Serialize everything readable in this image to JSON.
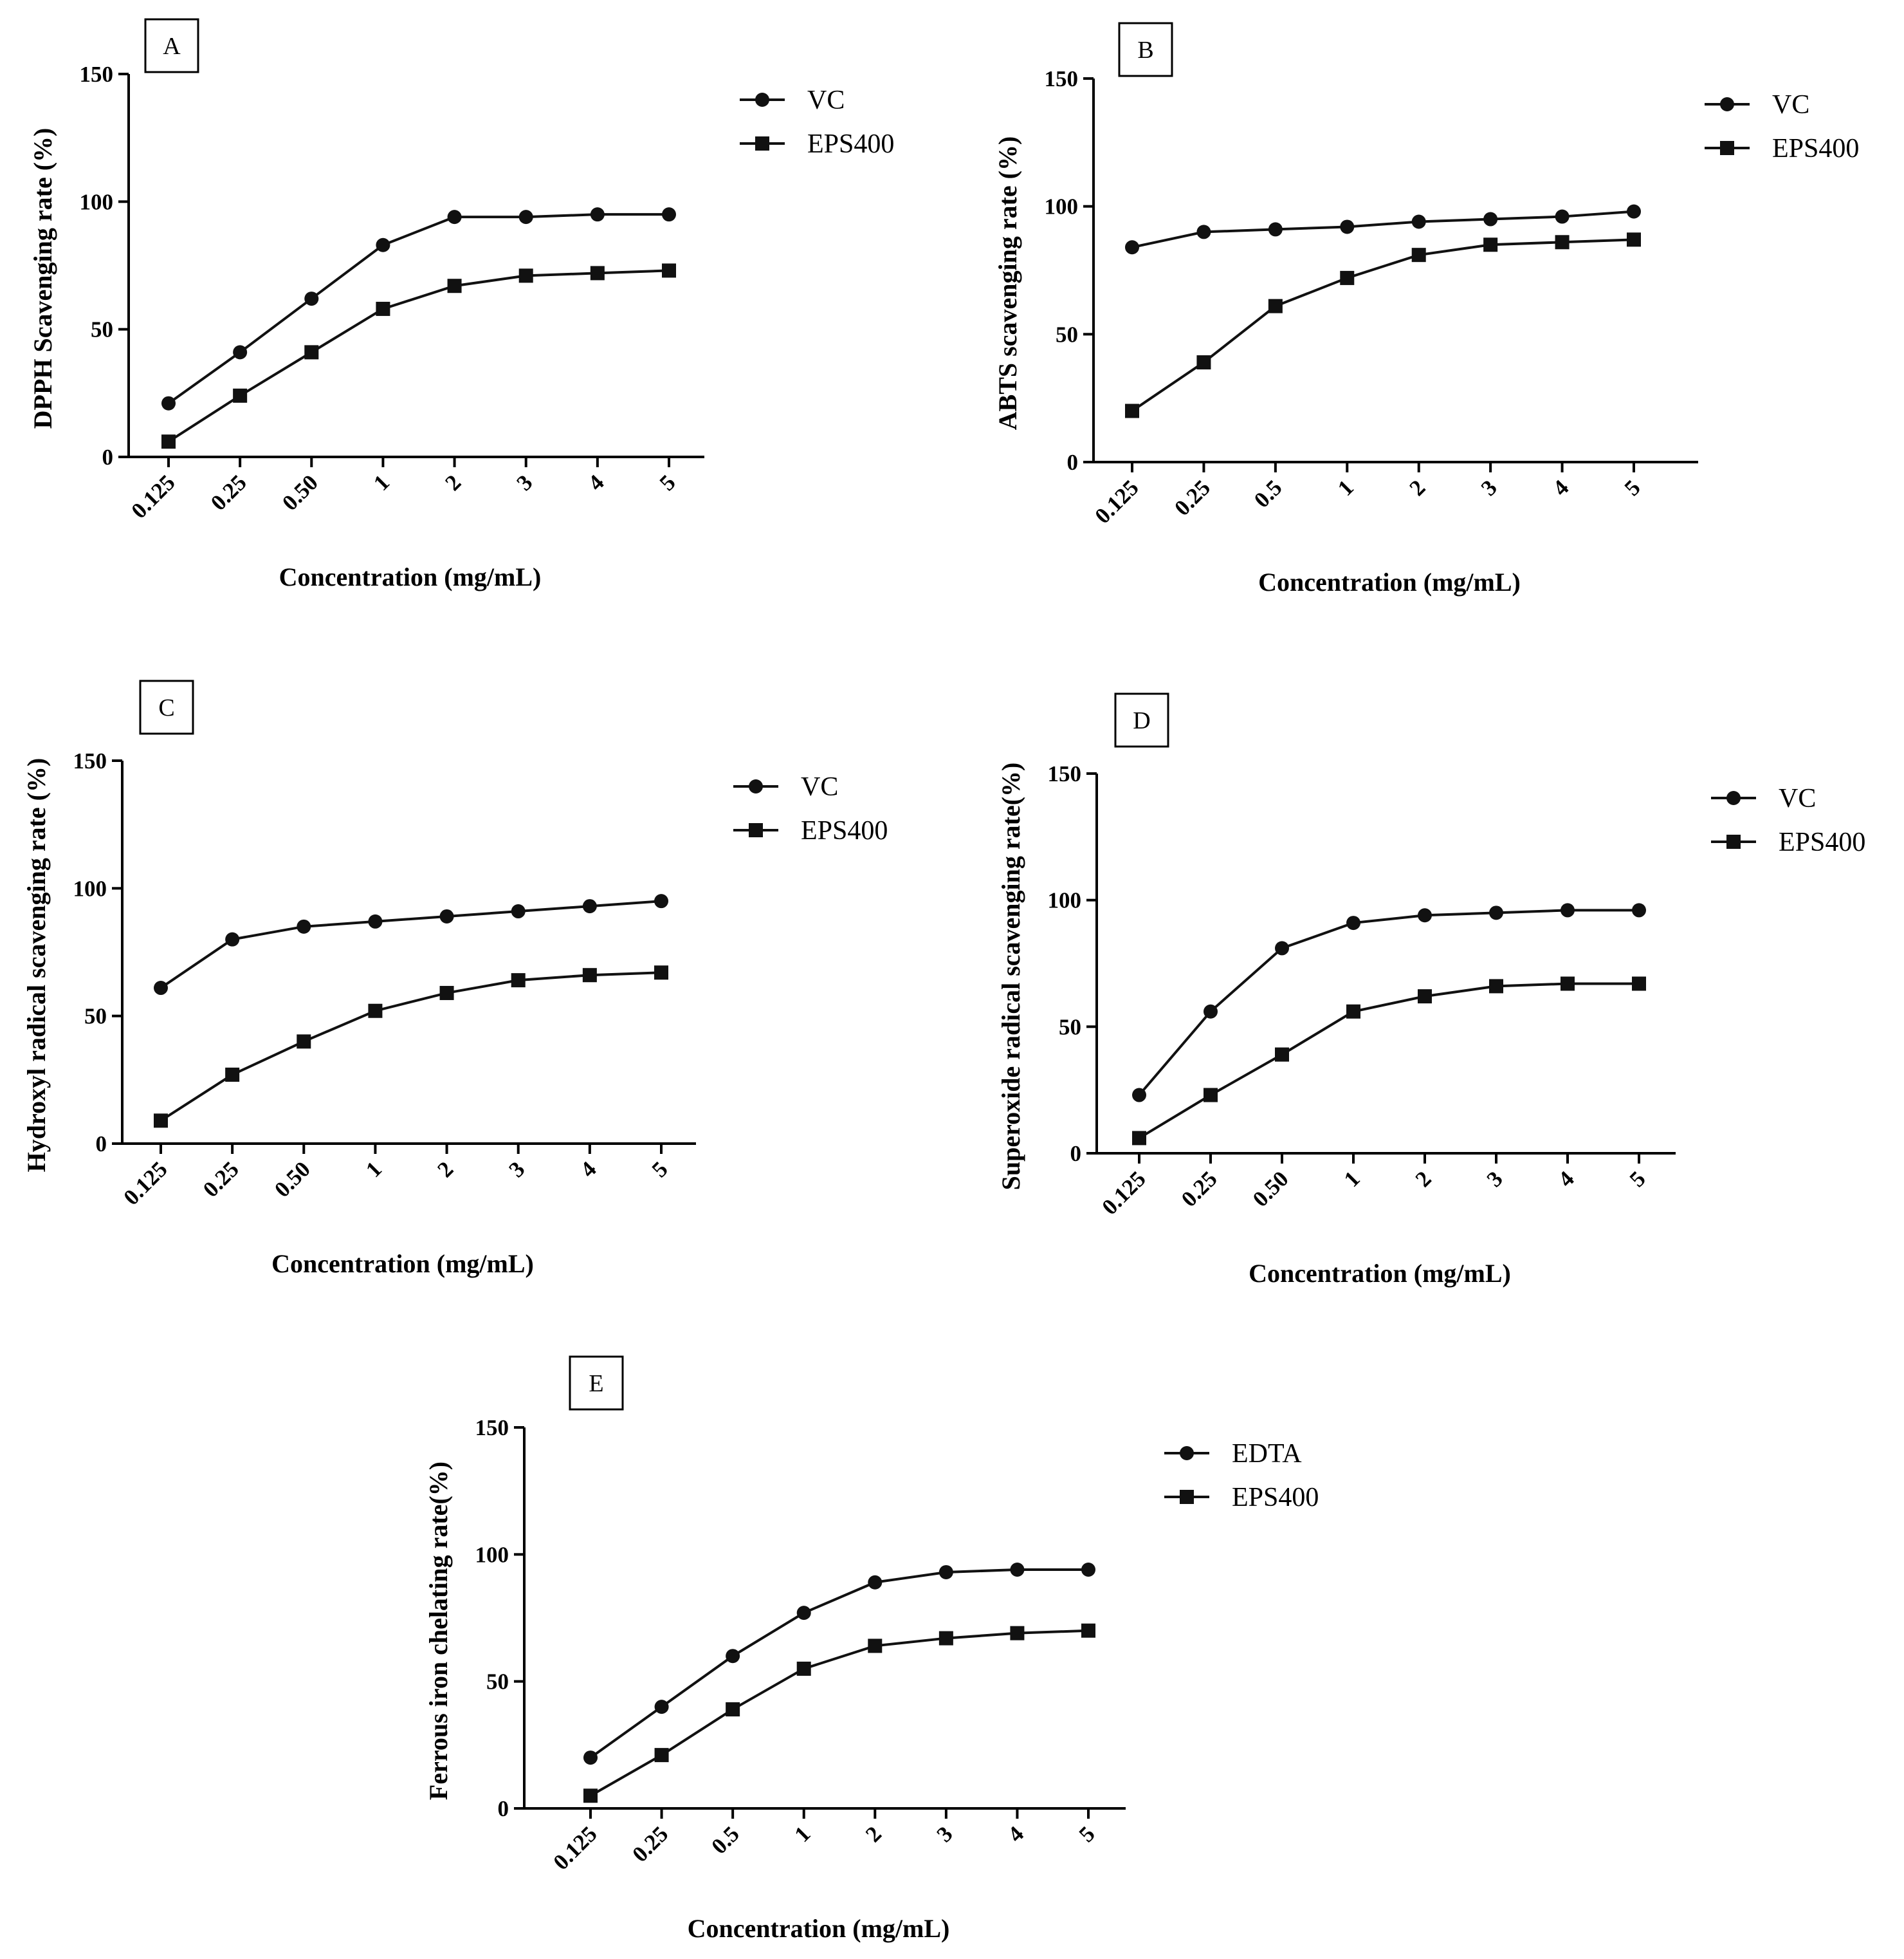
{
  "chart_data": [
    {
      "type": "line",
      "panel_label": "A",
      "categories": [
        "0.125",
        "0.25",
        "0.50",
        "1",
        "2",
        "3",
        "4",
        "5"
      ],
      "xlabel": "Concentration (mg/mL)",
      "ylabel": "DPPH Scavenging rate (%)",
      "ylim": [
        0,
        150
      ],
      "yticks": [
        "0",
        "50",
        "100",
        "150"
      ],
      "legend_position": "top-right",
      "series": [
        {
          "name": "VC",
          "marker": "circle",
          "values": [
            21,
            41,
            62,
            83,
            94,
            94,
            95,
            95
          ]
        },
        {
          "name": "EPS400",
          "marker": "square",
          "values": [
            6,
            24,
            41,
            58,
            67,
            71,
            72,
            73
          ]
        }
      ]
    },
    {
      "type": "line",
      "panel_label": "B",
      "categories": [
        "0.125",
        "0.25",
        "0.5",
        "1",
        "2",
        "3",
        "4",
        "5"
      ],
      "xlabel": "Concentration (mg/mL)",
      "ylabel": "ABTS scavenging rate (%)",
      "ylim": [
        0,
        150
      ],
      "yticks": [
        "0",
        "50",
        "100",
        "150"
      ],
      "legend_position": "top-right",
      "series": [
        {
          "name": "VC",
          "marker": "circle",
          "values": [
            84,
            90,
            91,
            92,
            94,
            95,
            96,
            98
          ]
        },
        {
          "name": "EPS400",
          "marker": "square",
          "values": [
            20,
            39,
            61,
            72,
            81,
            85,
            86,
            87
          ]
        }
      ]
    },
    {
      "type": "line",
      "panel_label": "C",
      "categories": [
        "0.125",
        "0.25",
        "0.50",
        "1",
        "2",
        "3",
        "4",
        "5"
      ],
      "xlabel": "Concentration (mg/mL)",
      "ylabel": "Hydroxyl radical scavenging rate (%)",
      "ylim": [
        0,
        150
      ],
      "yticks": [
        "0",
        "50",
        "100",
        "150"
      ],
      "legend_position": "top-right",
      "series": [
        {
          "name": "VC",
          "marker": "circle",
          "values": [
            61,
            80,
            85,
            87,
            89,
            91,
            93,
            95
          ]
        },
        {
          "name": "EPS400",
          "marker": "square",
          "values": [
            9,
            27,
            40,
            52,
            59,
            64,
            66,
            67
          ]
        }
      ]
    },
    {
      "type": "line",
      "panel_label": "D",
      "categories": [
        "0.125",
        "0.25",
        "0.50",
        "1",
        "2",
        "3",
        "4",
        "5"
      ],
      "xlabel": "Concentration (mg/mL)",
      "ylabel": "Superoxide radical scavenging rate(%)",
      "ylim": [
        0,
        150
      ],
      "yticks": [
        "0",
        "50",
        "100",
        "150"
      ],
      "legend_position": "top-right",
      "series": [
        {
          "name": "VC",
          "marker": "circle",
          "values": [
            23,
            56,
            81,
            91,
            94,
            95,
            96,
            96
          ]
        },
        {
          "name": "EPS400",
          "marker": "square",
          "values": [
            6,
            23,
            39,
            56,
            62,
            66,
            67,
            67
          ]
        }
      ]
    },
    {
      "type": "line",
      "panel_label": "E",
      "categories": [
        "0.125",
        "0.25",
        "0.5",
        "1",
        "2",
        "3",
        "4",
        "5"
      ],
      "xlabel": "Concentration (mg/mL)",
      "ylabel": "Ferrous iron chelating rate(%)",
      "ylim": [
        0,
        150
      ],
      "yticks": [
        "0",
        "50",
        "100",
        "150"
      ],
      "legend_position": "top-right",
      "series": [
        {
          "name": "EDTA",
          "marker": "circle",
          "values": [
            20,
            40,
            60,
            77,
            89,
            93,
            94,
            94
          ]
        },
        {
          "name": "EPS400",
          "marker": "square",
          "values": [
            5,
            21,
            39,
            55,
            64,
            67,
            69,
            70
          ]
        }
      ]
    }
  ]
}
